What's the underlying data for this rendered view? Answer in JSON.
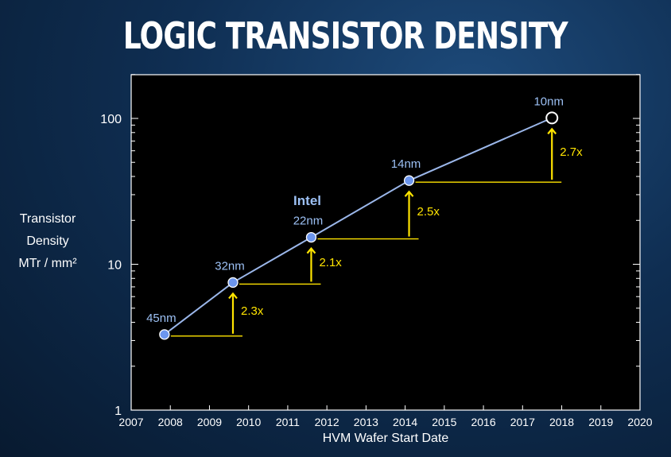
{
  "title": "LOGIC TRANSISTOR DENSITY",
  "ylabel_lines": [
    "Transistor",
    "Density",
    "MTr / mm²"
  ],
  "xlabel": "HVM Wafer Start Date",
  "series_label": "Intel",
  "colors": {
    "line": "#9bb7ea",
    "marker": "#6c96ee",
    "arrow": "#ffe400",
    "text_blue": "#9cc0f4"
  },
  "chart_data": {
    "type": "line",
    "title": "LOGIC TRANSISTOR DENSITY",
    "xlabel": "HVM Wafer Start Date",
    "ylabel": "Transistor Density MTr / mm²",
    "yscale": "log",
    "xlim": [
      2007,
      2020
    ],
    "ylim": [
      1,
      200
    ],
    "x_ticks": [
      "2007",
      "2008",
      "2009",
      "2010",
      "2011",
      "2012",
      "2013",
      "2014",
      "2015",
      "2016",
      "2017",
      "2018",
      "2019",
      "2020"
    ],
    "y_ticks": [
      {
        "value": 1,
        "label": "1"
      },
      {
        "value": 10,
        "label": "10"
      },
      {
        "value": 100,
        "label": "100"
      }
    ],
    "series": [
      {
        "name": "Intel",
        "points": [
          {
            "x": 2007.85,
            "y": 3.3,
            "label": "45nm"
          },
          {
            "x": 2009.6,
            "y": 7.5,
            "label": "32nm"
          },
          {
            "x": 2011.6,
            "y": 15.3,
            "label": "22nm"
          },
          {
            "x": 2014.1,
            "y": 37.5,
            "label": "14nm"
          },
          {
            "x": 2017.75,
            "y": 100.8,
            "label": "10nm",
            "hollow": true
          }
        ]
      }
    ],
    "annotations": [
      {
        "text": "2.3x",
        "from_index": 0,
        "to_index": 1
      },
      {
        "text": "2.1x",
        "from_index": 1,
        "to_index": 2
      },
      {
        "text": "2.5x",
        "from_index": 2,
        "to_index": 3
      },
      {
        "text": "2.7x",
        "from_index": 3,
        "to_index": 4
      }
    ],
    "grid": false,
    "legend": "none"
  }
}
